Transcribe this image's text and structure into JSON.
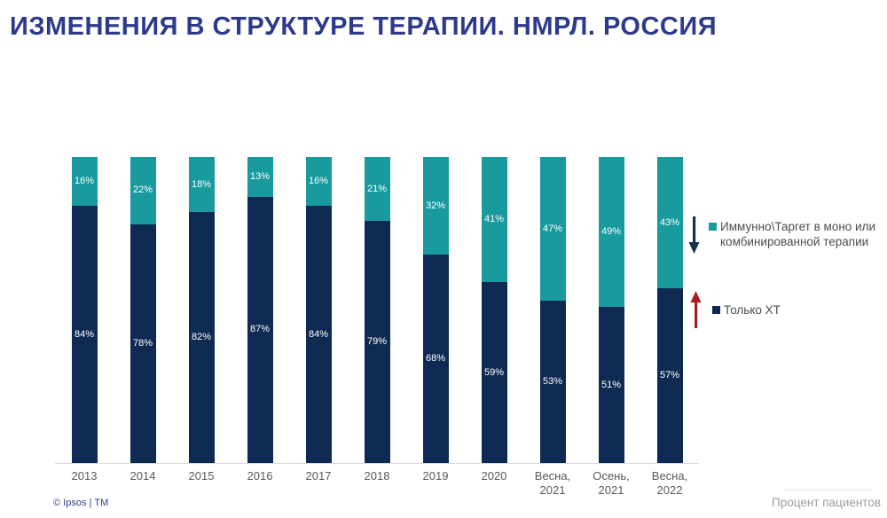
{
  "title": "ИЗМЕНЕНИЯ В СТРУКТУРЕ ТЕРАПИИ. НМРЛ. РОССИЯ",
  "colors": {
    "title": "#2D3A8C",
    "teal": "#189A9E",
    "navy": "#0F2A52",
    "axis_line": "#D9D9D9",
    "tick_label": "#595959",
    "legend_text": "#4D4D4D",
    "arrow_down": "#16304F",
    "arrow_up": "#A91D20",
    "footer_left": "#2F3C8E",
    "footer_right": "#9E9E9E",
    "value_label": "#FFFFFF"
  },
  "legend": {
    "items": [
      {
        "label": "Иммунно\\Таргет в моно или\nкомбинированной терапии",
        "swatch_color": "#189A9E",
        "trend": "down",
        "trend_color": "#16304F"
      },
      {
        "label": "Только ХТ",
        "swatch_color": "#0F2A52",
        "trend": "up",
        "trend_color": "#A91D20"
      }
    ]
  },
  "footer": {
    "left": "© Ipsos | ТМ",
    "right": "Процент пациентов"
  },
  "chart_data": {
    "type": "bar",
    "stacked": true,
    "title": "ИЗМЕНЕНИЯ В СТРУКТУРЕ ТЕРАПИИ. НМРЛ. РОССИЯ",
    "units_label": "Процент пациентов",
    "categories": [
      "2013",
      "2014",
      "2015",
      "2016",
      "2017",
      "2018",
      "2019",
      "2020",
      "Весна,\n2021",
      "Осень,\n2021",
      "Весна,\n2022"
    ],
    "series": [
      {
        "name": "Только ХТ",
        "color": "#0F2A52",
        "values": [
          84,
          78,
          82,
          87,
          84,
          79,
          68,
          59,
          53,
          51,
          57
        ]
      },
      {
        "name": "Иммунно\\Таргет в моно или комбинированной терапии",
        "color": "#189A9E",
        "values": [
          16,
          22,
          18,
          13,
          16,
          21,
          32,
          41,
          47,
          49,
          43
        ]
      }
    ],
    "ylim": [
      0,
      100
    ],
    "value_suffix": "%",
    "grid": false,
    "legend_position": "right"
  }
}
